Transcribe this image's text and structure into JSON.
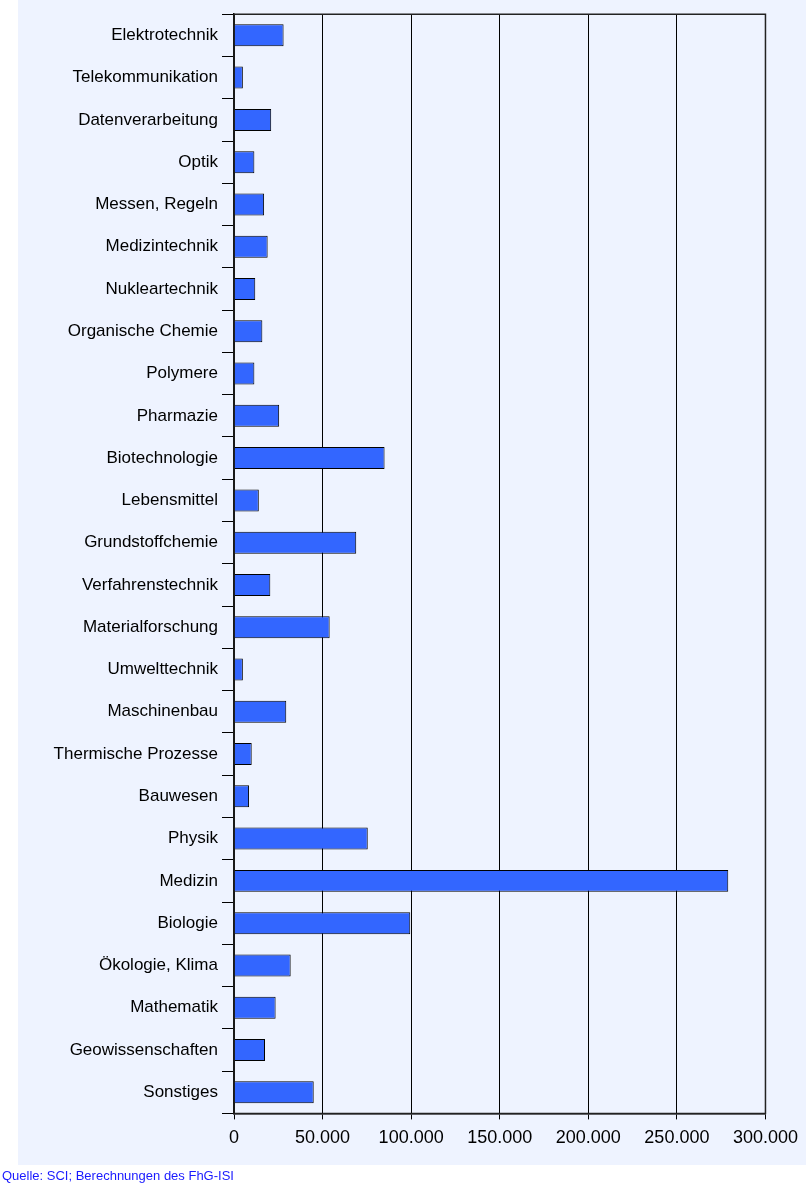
{
  "chart_data": {
    "type": "bar",
    "orientation": "horizontal",
    "categories": [
      "Elektrotechnik",
      "Telekommunikation",
      "Datenverarbeitung",
      "Optik",
      "Messen, Regeln",
      "Medizintechnik",
      "Nukleartechnik",
      "Organische Chemie",
      "Polymere",
      "Pharmazie",
      "Biotechnologie",
      "Lebensmittel",
      "Grundstoffchemie",
      "Verfahrenstechnik",
      "Materialforschung",
      "Umwelttechnik",
      "Maschinenbau",
      "Thermische Prozesse",
      "Bauwesen",
      "Physik",
      "Medizin",
      "Biologie",
      "Ökologie, Klima",
      "Mathematik",
      "Geowissenschaften",
      "Sonstiges"
    ],
    "values": [
      28000,
      5000,
      21000,
      11500,
      17000,
      19000,
      12000,
      16000,
      11500,
      25500,
      85000,
      14000,
      69000,
      20500,
      54000,
      5000,
      29500,
      10000,
      8500,
      75500,
      279000,
      99500,
      32000,
      23500,
      17500,
      45000
    ],
    "color": "#3366ff",
    "xlim": [
      0,
      300000
    ],
    "xticks": [
      {
        "value": 0,
        "label": "0"
      },
      {
        "value": 50000,
        "label": "50.000"
      },
      {
        "value": 100000,
        "label": "100.000"
      },
      {
        "value": 150000,
        "label": "150.000"
      },
      {
        "value": 200000,
        "label": "200.000"
      },
      {
        "value": 250000,
        "label": "250.000"
      },
      {
        "value": 300000,
        "label": "300.000"
      }
    ],
    "grid": "x",
    "annotations": [
      "Quelle: SCI; Berechnungen des FhG-ISI"
    ]
  }
}
